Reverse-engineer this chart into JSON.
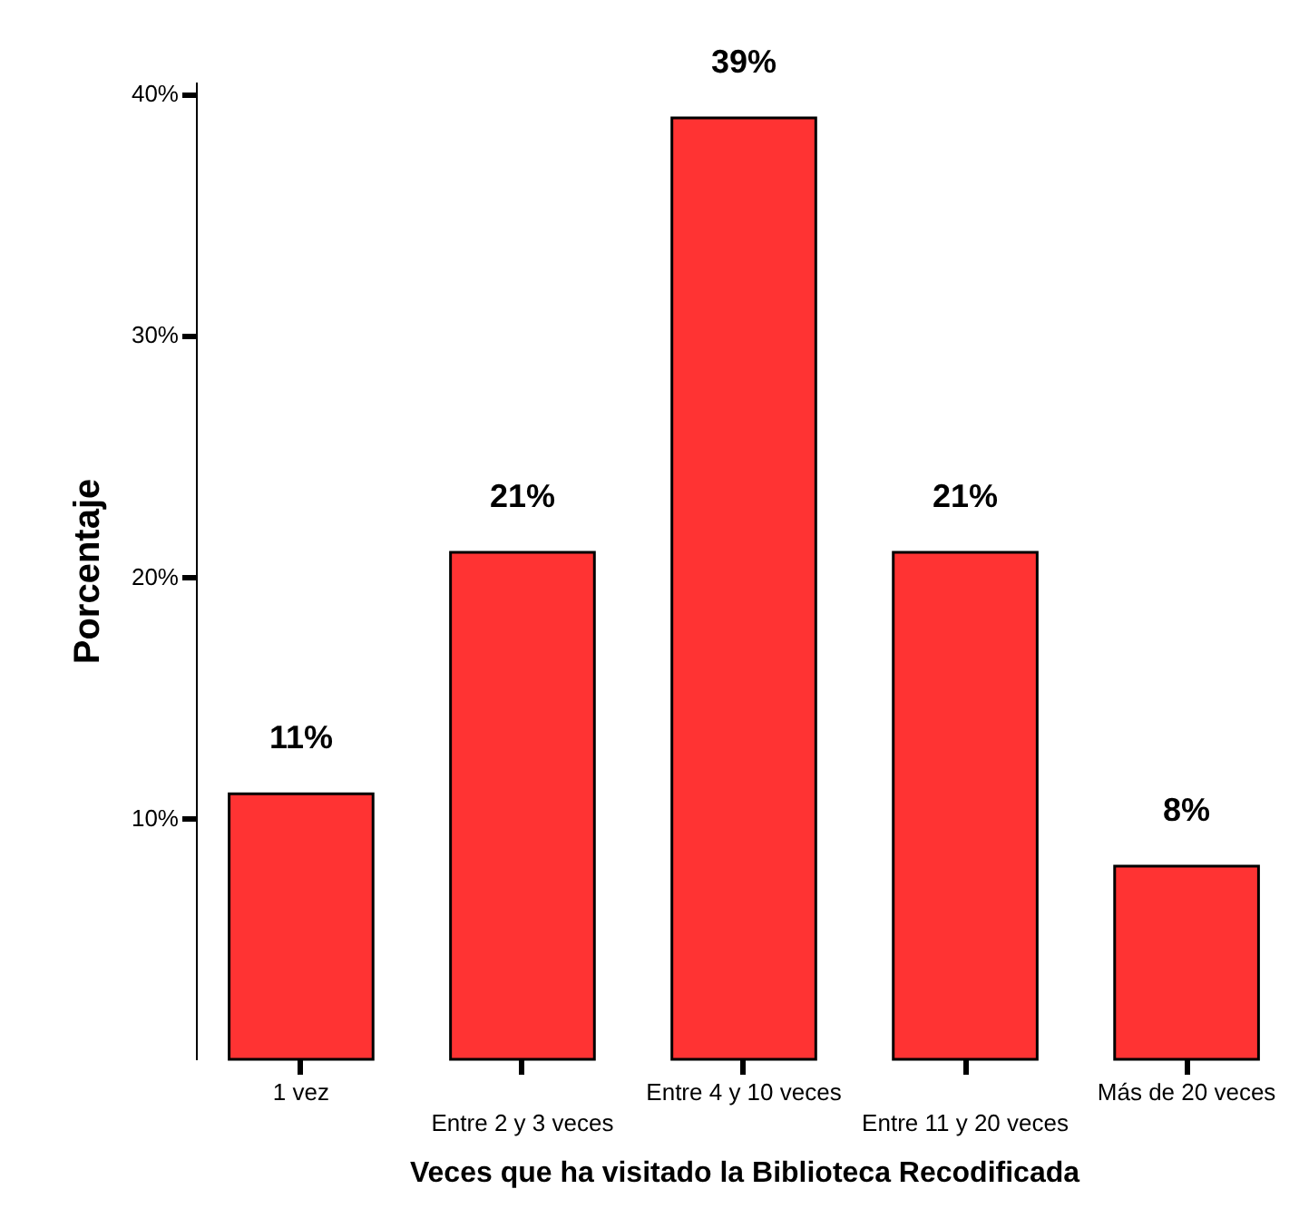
{
  "chart_data": {
    "type": "bar",
    "xlabel": "Veces que ha visitado la Biblioteca Recodificada",
    "ylabel": "Porcentaje",
    "categories": [
      "1 vez",
      "Entre 2 y 3 veces",
      "Entre 4 y 10 veces",
      "Entre 11 y 20 veces",
      "Más de 20 veces"
    ],
    "values": [
      11,
      21,
      39,
      21,
      8
    ],
    "value_labels": [
      "11%",
      "21%",
      "39%",
      "21%",
      "8%"
    ],
    "color": "#ff3333",
    "ylim": [
      0,
      40.5
    ],
    "yticks": [
      {
        "value": 10,
        "label": "10%"
      },
      {
        "value": 20,
        "label": "20%"
      },
      {
        "value": 30,
        "label": "30%"
      },
      {
        "value": 40,
        "label": "40%"
      }
    ],
    "grid": false
  }
}
